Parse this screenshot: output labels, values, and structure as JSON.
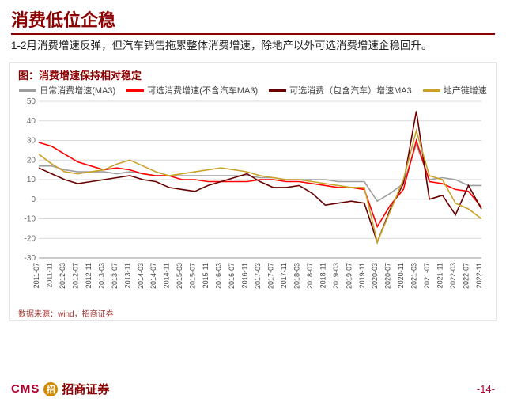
{
  "header": {
    "title": "消费低位企稳",
    "desc": "1-2月消费增速反弹，但汽车销售拖累整体消费增速，除地产以外可选消费增速企稳回升。"
  },
  "chart": {
    "caption": "图：消费增速保持相对稳定",
    "type": "line",
    "background_color": "#ffffff",
    "grid_color": "#d9d9d9",
    "axis_color": "#999999",
    "ylabel_color": "#666666",
    "xlabel_color": "#444444",
    "ylabel_fontsize": 10,
    "xlabel_fontsize": 9,
    "ylim": [
      -30,
      50
    ],
    "ytick_step": 10,
    "yticks": [
      -30,
      -20,
      -10,
      0,
      10,
      20,
      30,
      40,
      50
    ],
    "line_width": 1.6,
    "x_labels": [
      "2011-07",
      "2011-11",
      "2012-03",
      "2012-07",
      "2012-11",
      "2013-03",
      "2013-07",
      "2013-11",
      "2014-03",
      "2014-07",
      "2014-11",
      "2015-03",
      "2015-07",
      "2015-11",
      "2016-03",
      "2016-07",
      "2016-11",
      "2017-03",
      "2017-07",
      "2017-11",
      "2018-03",
      "2018-07",
      "2018-11",
      "2019-03",
      "2019-07",
      "2019-11",
      "2020-03",
      "2020-07",
      "2020-11",
      "2021-03",
      "2021-07",
      "2021-11",
      "2022-03",
      "2022-07",
      "2022-11"
    ],
    "legend_fontsize": 11,
    "series": [
      {
        "id": "daily",
        "label": "日常消费增速(MA3)",
        "color": "#9e9e9e",
        "values": [
          17,
          17,
          15,
          14,
          14,
          14,
          13,
          14,
          13,
          12,
          12,
          12,
          12,
          12,
          12,
          12,
          12,
          11,
          11,
          10,
          10,
          10,
          10,
          9,
          9,
          9,
          -1,
          3,
          8,
          28,
          10,
          11,
          10,
          7,
          7
        ]
      },
      {
        "id": "optional_ex_auto",
        "label": "可选消费增速(不含汽车MA3)",
        "color": "#ff0000",
        "values": [
          29,
          27,
          23,
          19,
          17,
          15,
          16,
          15,
          13,
          12,
          12,
          10,
          10,
          9,
          9,
          9,
          9,
          10,
          10,
          9,
          9,
          8,
          7,
          6,
          6,
          5,
          -14,
          -3,
          5,
          30,
          9,
          8,
          5,
          4,
          -4
        ]
      },
      {
        "id": "optional_inc_auto",
        "label": "可选消费（包含汽车）增速MA3",
        "color": "#6b0000",
        "values": [
          16,
          13,
          10,
          8,
          9,
          10,
          11,
          12,
          10,
          9,
          6,
          5,
          4,
          7,
          9,
          11,
          13,
          9,
          6,
          6,
          7,
          3,
          -3,
          -2,
          -1,
          -2,
          -22,
          -5,
          8,
          45,
          0,
          2,
          -8,
          7,
          -5
        ]
      },
      {
        "id": "realestate",
        "label": "地产链增速",
        "color": "#c9a227",
        "values": [
          23,
          18,
          14,
          13,
          14,
          15,
          18,
          20,
          17,
          14,
          12,
          13,
          14,
          15,
          16,
          15,
          14,
          12,
          11,
          10,
          10,
          9,
          8,
          7,
          6,
          6,
          -22,
          -6,
          10,
          35,
          12,
          10,
          -2,
          -5,
          -10
        ]
      }
    ],
    "source": "数据来源：wind，招商证券"
  },
  "footer": {
    "brand_en": "CMS",
    "logo_text": "招",
    "brand_cn": "招商证券",
    "page": "-14-"
  }
}
